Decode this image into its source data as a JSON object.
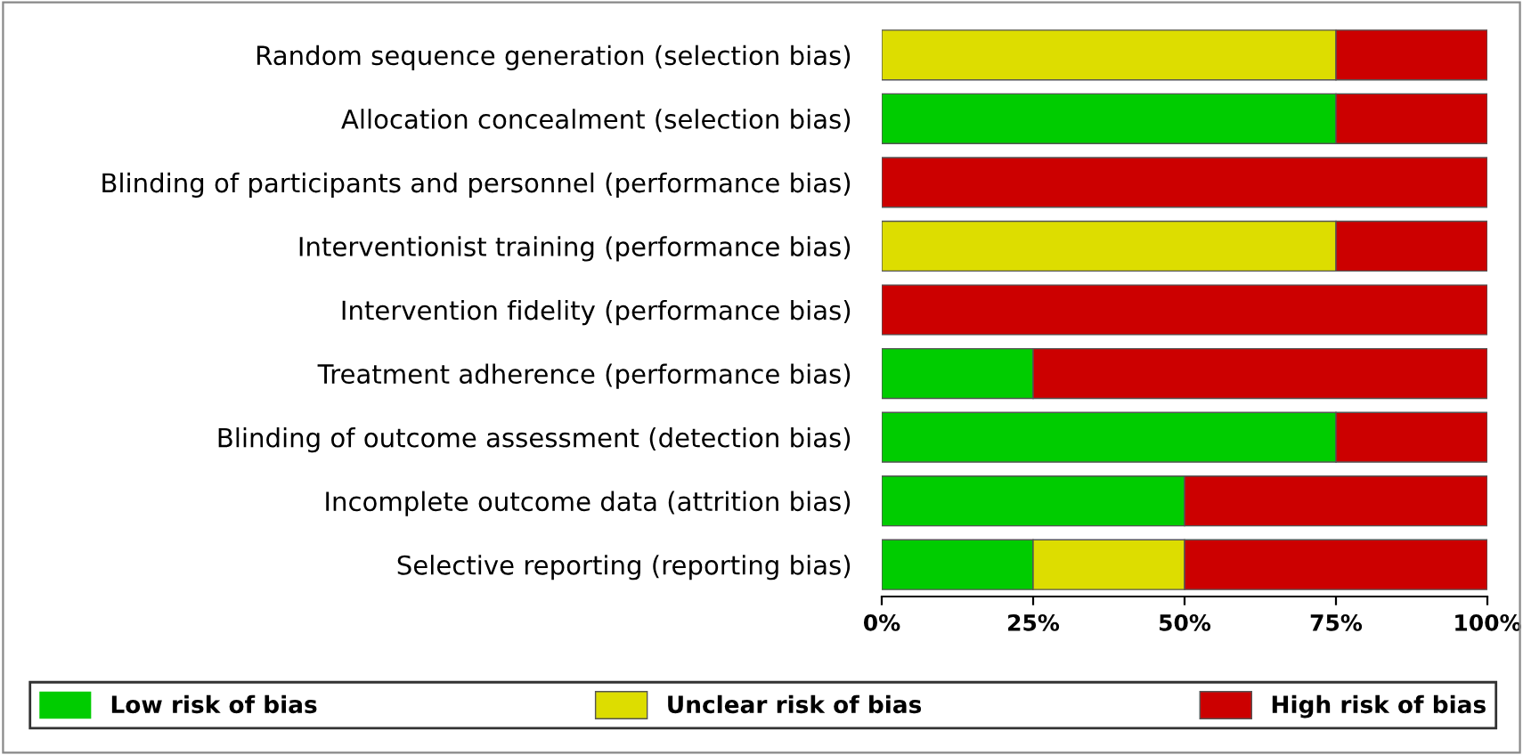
{
  "chart_data": {
    "type": "bar",
    "orientation": "horizontal",
    "stacked": true,
    "categories": [
      "Random sequence generation (selection bias)",
      "Allocation concealment (selection bias)",
      "Blinding of participants and personnel (performance bias)",
      "Interventionist training (performance bias)",
      "Intervention fidelity (performance bias)",
      "Treatment adherence (performance bias)",
      "Blinding of outcome assessment (detection bias)",
      "Incomplete outcome data (attrition bias)",
      "Selective reporting (reporting bias)"
    ],
    "series": [
      {
        "name": "Low risk of bias",
        "color": "#00cc00",
        "values": [
          0,
          75,
          0,
          0,
          0,
          25,
          75,
          50,
          25
        ]
      },
      {
        "name": "Unclear risk of bias",
        "color": "#dddd00",
        "values": [
          75,
          0,
          0,
          75,
          0,
          0,
          0,
          0,
          25
        ]
      },
      {
        "name": "High risk of bias",
        "color": "#cc0000",
        "values": [
          25,
          25,
          100,
          25,
          100,
          75,
          25,
          50,
          50
        ]
      }
    ],
    "xlim": [
      0,
      100
    ],
    "xticks": [
      {
        "value": 0,
        "label": "0%"
      },
      {
        "value": 25,
        "label": "25%"
      },
      {
        "value": 50,
        "label": "50%"
      },
      {
        "value": 75,
        "label": "75%"
      },
      {
        "value": 100,
        "label": "100%"
      }
    ],
    "grid": false,
    "legend": "bottom"
  }
}
